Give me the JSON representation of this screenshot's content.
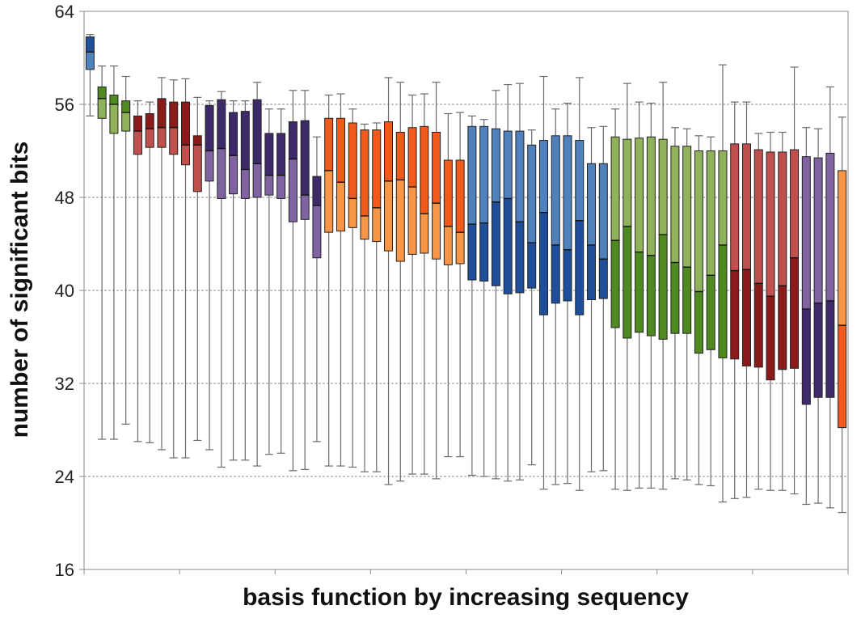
{
  "chart_data": {
    "type": "box",
    "title": "",
    "xlabel": "basis function by increasing sequency",
    "ylabel": "number of significant bits",
    "ylim": [
      16,
      64
    ],
    "yticks": [
      16,
      24,
      32,
      40,
      48,
      56,
      64
    ],
    "grid": {
      "horizontal_dashed_at": [
        24,
        32,
        40,
        48,
        56
      ]
    },
    "x_tick_marks_count": 8,
    "colors": {
      "blue_dark": "#1f4e9a",
      "blue_light": "#4f81bd",
      "green_dark": "#4e8a20",
      "green_light": "#8fb25a",
      "red_dark": "#8b1a1a",
      "red_light": "#c0504d",
      "purple_dark": "#3d2a6b",
      "purple_light": "#8064a2",
      "orange_dark": "#f05a1a",
      "orange_light": "#f79646"
    },
    "boxes": [
      {
        "min": 55,
        "q1": 59,
        "median": 60.5,
        "q3": 61.8,
        "max": 62,
        "upper_color": "blue_dark",
        "lower_color": "blue_light"
      },
      {
        "min": 27.2,
        "q1": 54.8,
        "median": 56.5,
        "q3": 57.5,
        "max": 59.3,
        "upper_color": "green_dark",
        "lower_color": "green_light"
      },
      {
        "min": 27.2,
        "q1": 53.5,
        "median": 56,
        "q3": 56.8,
        "max": 59.3,
        "upper_color": "green_dark",
        "lower_color": "green_light"
      },
      {
        "min": 28.5,
        "q1": 53.7,
        "median": 55.3,
        "q3": 56.3,
        "max": 58.4,
        "upper_color": "green_dark",
        "lower_color": "green_light"
      },
      {
        "min": 27,
        "q1": 51.7,
        "median": 53.7,
        "q3": 55,
        "max": 56.3,
        "upper_color": "red_dark",
        "lower_color": "red_light"
      },
      {
        "min": 26.9,
        "q1": 52.3,
        "median": 53.9,
        "q3": 55.2,
        "max": 56.2,
        "upper_color": "red_dark",
        "lower_color": "red_light"
      },
      {
        "min": 26.3,
        "q1": 52.3,
        "median": 54,
        "q3": 56.5,
        "max": 58.3,
        "upper_color": "red_dark",
        "lower_color": "red_light"
      },
      {
        "min": 25.6,
        "q1": 51.7,
        "median": 54,
        "q3": 56.2,
        "max": 58.1,
        "upper_color": "red_dark",
        "lower_color": "red_light"
      },
      {
        "min": 25.6,
        "q1": 50.8,
        "median": 52.5,
        "q3": 56.2,
        "max": 58.2,
        "upper_color": "red_dark",
        "lower_color": "red_light"
      },
      {
        "min": 27.1,
        "q1": 48.5,
        "median": 52.5,
        "q3": 53.3,
        "max": 56.6,
        "upper_color": "red_dark",
        "lower_color": "red_light"
      },
      {
        "min": 26.3,
        "q1": 49.4,
        "median": 52,
        "q3": 55.9,
        "max": 56.3,
        "upper_color": "purple_dark",
        "lower_color": "purple_light"
      },
      {
        "min": 24.8,
        "q1": 47.9,
        "median": 52.2,
        "q3": 56.4,
        "max": 57.1,
        "upper_color": "purple_dark",
        "lower_color": "purple_light"
      },
      {
        "min": 25.4,
        "q1": 48.3,
        "median": 51.6,
        "q3": 55.3,
        "max": 56.3,
        "upper_color": "purple_dark",
        "lower_color": "purple_light"
      },
      {
        "min": 25.4,
        "q1": 47.9,
        "median": 50.4,
        "q3": 55.4,
        "max": 56.3,
        "upper_color": "purple_dark",
        "lower_color": "purple_light"
      },
      {
        "min": 24.9,
        "q1": 48,
        "median": 50.9,
        "q3": 56.4,
        "max": 57.9,
        "upper_color": "purple_dark",
        "lower_color": "purple_light"
      },
      {
        "min": 25.9,
        "q1": 48.2,
        "median": 49.9,
        "q3": 53.5,
        "max": 55.6,
        "upper_color": "purple_dark",
        "lower_color": "purple_light"
      },
      {
        "min": 26,
        "q1": 47.9,
        "median": 49.9,
        "q3": 53.5,
        "max": 55.6,
        "upper_color": "purple_dark",
        "lower_color": "purple_light"
      },
      {
        "min": 24.5,
        "q1": 45.9,
        "median": 51.3,
        "q3": 54.5,
        "max": 57.2,
        "upper_color": "purple_dark",
        "lower_color": "purple_light"
      },
      {
        "min": 24.6,
        "q1": 46.1,
        "median": 48.2,
        "q3": 54.6,
        "max": 57.2,
        "upper_color": "purple_dark",
        "lower_color": "purple_light"
      },
      {
        "min": 27,
        "q1": 42.8,
        "median": 47.3,
        "q3": 49.8,
        "max": 53.2,
        "upper_color": "purple_dark",
        "lower_color": "purple_light"
      },
      {
        "min": 24.9,
        "q1": 45,
        "median": 50.3,
        "q3": 54.8,
        "max": 56.8,
        "upper_color": "orange_dark",
        "lower_color": "orange_light"
      },
      {
        "min": 24.9,
        "q1": 45.1,
        "median": 49.3,
        "q3": 54.8,
        "max": 56.9,
        "upper_color": "orange_dark",
        "lower_color": "orange_light"
      },
      {
        "min": 24.8,
        "q1": 45.4,
        "median": 47.9,
        "q3": 54.4,
        "max": 55.6,
        "upper_color": "orange_dark",
        "lower_color": "orange_light"
      },
      {
        "min": 24.4,
        "q1": 44.4,
        "median": 46.4,
        "q3": 53.8,
        "max": 54.3,
        "upper_color": "orange_dark",
        "lower_color": "orange_light"
      },
      {
        "min": 24.4,
        "q1": 44.2,
        "median": 47.1,
        "q3": 53.8,
        "max": 54.4,
        "upper_color": "orange_dark",
        "lower_color": "orange_light"
      },
      {
        "min": 23.3,
        "q1": 43.4,
        "median": 49.4,
        "q3": 54.5,
        "max": 58.3,
        "upper_color": "orange_dark",
        "lower_color": "orange_light"
      },
      {
        "min": 23.6,
        "q1": 42.5,
        "median": 49.5,
        "q3": 53.6,
        "max": 57.9,
        "upper_color": "orange_dark",
        "lower_color": "orange_light"
      },
      {
        "min": 24.2,
        "q1": 43.1,
        "median": 48.9,
        "q3": 54,
        "max": 56.8,
        "upper_color": "orange_dark",
        "lower_color": "orange_light"
      },
      {
        "min": 24.2,
        "q1": 43.2,
        "median": 46.6,
        "q3": 54.1,
        "max": 56.9,
        "upper_color": "orange_dark",
        "lower_color": "orange_light"
      },
      {
        "min": 23.8,
        "q1": 42.7,
        "median": 47.5,
        "q3": 53.6,
        "max": 57.9,
        "upper_color": "orange_dark",
        "lower_color": "orange_light"
      },
      {
        "min": 25.7,
        "q1": 42.2,
        "median": 45.5,
        "q3": 51.2,
        "max": 55.2,
        "upper_color": "orange_dark",
        "lower_color": "orange_light"
      },
      {
        "min": 25.7,
        "q1": 42.3,
        "median": 45,
        "q3": 51.2,
        "max": 55.3,
        "upper_color": "orange_dark",
        "lower_color": "orange_light"
      },
      {
        "min": 24.1,
        "q1": 40.9,
        "median": 45.7,
        "q3": 54.1,
        "max": 55,
        "upper_color": "blue_light",
        "lower_color": "blue_dark"
      },
      {
        "min": 24,
        "q1": 40.8,
        "median": 45.8,
        "q3": 54.1,
        "max": 54.7,
        "upper_color": "blue_light",
        "lower_color": "blue_dark"
      },
      {
        "min": 23.8,
        "q1": 40.4,
        "median": 47.6,
        "q3": 53.9,
        "max": 57.2,
        "upper_color": "blue_light",
        "lower_color": "blue_dark"
      },
      {
        "min": 23.6,
        "q1": 39.7,
        "median": 47.9,
        "q3": 53.7,
        "max": 57.7,
        "upper_color": "blue_light",
        "lower_color": "blue_dark"
      },
      {
        "min": 23.7,
        "q1": 39.8,
        "median": 45.9,
        "q3": 53.7,
        "max": 57.8,
        "upper_color": "blue_light",
        "lower_color": "blue_dark"
      },
      {
        "min": 25,
        "q1": 40.2,
        "median": 44.1,
        "q3": 52.5,
        "max": 53.8,
        "upper_color": "blue_light",
        "lower_color": "blue_dark"
      },
      {
        "min": 22.9,
        "q1": 37.9,
        "median": 46.7,
        "q3": 52.9,
        "max": 58.4,
        "upper_color": "blue_light",
        "lower_color": "blue_dark"
      },
      {
        "min": 23.3,
        "q1": 38.9,
        "median": 43.9,
        "q3": 53.3,
        "max": 55.6,
        "upper_color": "blue_light",
        "lower_color": "blue_dark"
      },
      {
        "min": 23.4,
        "q1": 39.1,
        "median": 43.5,
        "q3": 53.3,
        "max": 56.1,
        "upper_color": "blue_light",
        "lower_color": "blue_dark"
      },
      {
        "min": 22.8,
        "q1": 37.9,
        "median": 46,
        "q3": 52.9,
        "max": 58.3,
        "upper_color": "blue_light",
        "lower_color": "blue_dark"
      },
      {
        "min": 24.4,
        "q1": 39.2,
        "median": 43.9,
        "q3": 50.9,
        "max": 54,
        "upper_color": "blue_light",
        "lower_color": "blue_dark"
      },
      {
        "min": 24.5,
        "q1": 39.3,
        "median": 42.7,
        "q3": 50.9,
        "max": 54.1,
        "upper_color": "blue_light",
        "lower_color": "blue_dark"
      },
      {
        "min": 22.9,
        "q1": 36.8,
        "median": 44.3,
        "q3": 53.2,
        "max": 55.6,
        "upper_color": "green_light",
        "lower_color": "green_dark"
      },
      {
        "min": 22.8,
        "q1": 35.9,
        "median": 45.5,
        "q3": 53,
        "max": 57.8,
        "upper_color": "green_light",
        "lower_color": "green_dark"
      },
      {
        "min": 23,
        "q1": 36.4,
        "median": 43.3,
        "q3": 53.1,
        "max": 56.2,
        "upper_color": "green_light",
        "lower_color": "green_dark"
      },
      {
        "min": 23,
        "q1": 36.1,
        "median": 43,
        "q3": 53.2,
        "max": 56.1,
        "upper_color": "green_light",
        "lower_color": "green_dark"
      },
      {
        "min": 22.9,
        "q1": 35.8,
        "median": 44.8,
        "q3": 53,
        "max": 57.9,
        "upper_color": "green_light",
        "lower_color": "green_dark"
      },
      {
        "min": 23.8,
        "q1": 36.3,
        "median": 42.4,
        "q3": 52.4,
        "max": 54,
        "upper_color": "green_light",
        "lower_color": "green_dark"
      },
      {
        "min": 23.7,
        "q1": 36.3,
        "median": 42,
        "q3": 52.4,
        "max": 53.9,
        "upper_color": "green_light",
        "lower_color": "green_dark"
      },
      {
        "min": 23.3,
        "q1": 34.6,
        "median": 39.9,
        "q3": 52,
        "max": 53.3,
        "upper_color": "green_light",
        "lower_color": "green_dark"
      },
      {
        "min": 23.2,
        "q1": 34.9,
        "median": 41.3,
        "q3": 52,
        "max": 53.2,
        "upper_color": "green_light",
        "lower_color": "green_dark"
      },
      {
        "min": 21.8,
        "q1": 34.2,
        "median": 43.9,
        "q3": 52,
        "max": 59.4,
        "upper_color": "green_light",
        "lower_color": "green_dark"
      },
      {
        "min": 22.1,
        "q1": 34.1,
        "median": 41.7,
        "q3": 52.6,
        "max": 56.2,
        "upper_color": "red_light",
        "lower_color": "red_dark"
      },
      {
        "min": 22.2,
        "q1": 33.5,
        "median": 41.8,
        "q3": 52.6,
        "max": 56.2,
        "upper_color": "red_light",
        "lower_color": "red_dark"
      },
      {
        "min": 22.9,
        "q1": 33.4,
        "median": 40.6,
        "q3": 52.1,
        "max": 53.5,
        "upper_color": "red_light",
        "lower_color": "red_dark"
      },
      {
        "min": 22.8,
        "q1": 32.3,
        "median": 39.5,
        "q3": 51.9,
        "max": 53.6,
        "upper_color": "red_light",
        "lower_color": "red_dark"
      },
      {
        "min": 22.8,
        "q1": 33.2,
        "median": 40.4,
        "q3": 51.9,
        "max": 53.6,
        "upper_color": "red_light",
        "lower_color": "red_dark"
      },
      {
        "min": 22.5,
        "q1": 33.3,
        "median": 42.8,
        "q3": 52.1,
        "max": 59.2,
        "upper_color": "red_light",
        "lower_color": "red_dark"
      },
      {
        "min": 21.6,
        "q1": 30.2,
        "median": 38.4,
        "q3": 51.5,
        "max": 54,
        "upper_color": "purple_light",
        "lower_color": "purple_dark"
      },
      {
        "min": 21.7,
        "q1": 30.8,
        "median": 38.9,
        "q3": 51.4,
        "max": 53.9,
        "upper_color": "purple_light",
        "lower_color": "purple_dark"
      },
      {
        "min": 21.3,
        "q1": 30.8,
        "median": 39.1,
        "q3": 51.8,
        "max": 57.5,
        "upper_color": "purple_light",
        "lower_color": "purple_dark"
      },
      {
        "min": 20.9,
        "q1": 28.2,
        "median": 37,
        "q3": 50.3,
        "max": 54.9,
        "upper_color": "orange_light",
        "lower_color": "orange_dark"
      }
    ]
  }
}
